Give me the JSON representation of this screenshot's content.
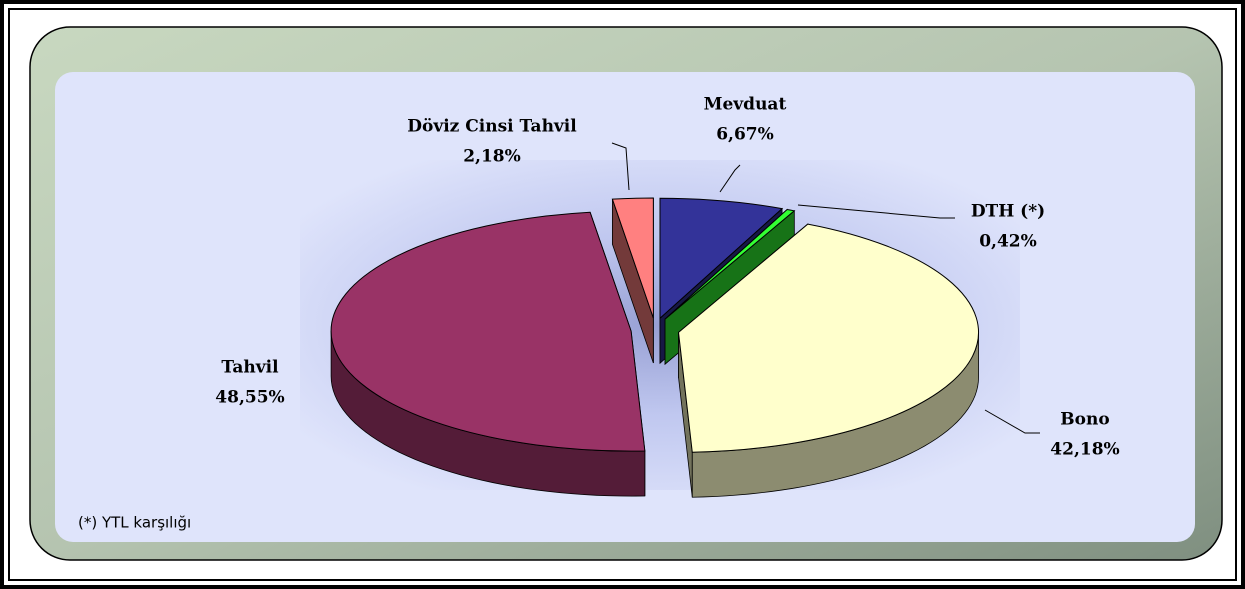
{
  "chart_data": {
    "type": "pie3d",
    "categories": [
      "Mevduat",
      "DTH (*)",
      "Bono",
      "Tahvil",
      "Döviz Cinsi Tahvil"
    ],
    "values": [
      6.67,
      0.42,
      42.18,
      48.55,
      2.18
    ],
    "value_labels": [
      "6,67%",
      "0,42%",
      "42,18%",
      "48,55%",
      "2,18%"
    ],
    "colors": [
      "#333399",
      "#33ff33",
      "#ffffcc",
      "#993366",
      "#ff8080"
    ],
    "note": "(*) YTL karşılığı"
  }
}
